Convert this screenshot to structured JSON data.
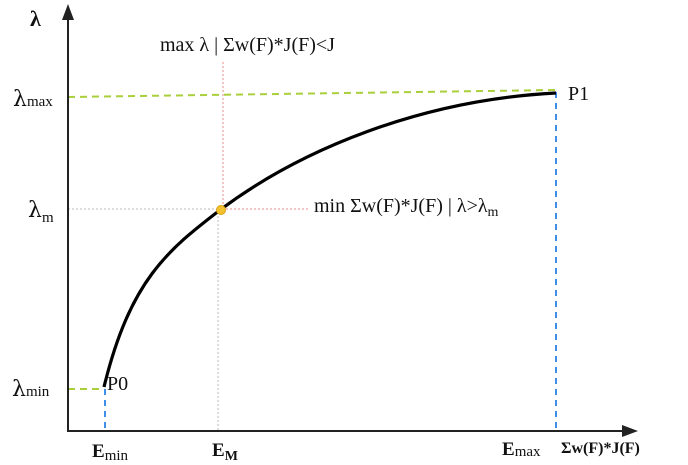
{
  "axes": {
    "y_symbol": "λ",
    "x_label": "Σw(F)*J(F)",
    "y_ticks": {
      "max": {
        "sym": "λ",
        "sub": "max"
      },
      "m": {
        "sym": "λ",
        "sub": "m"
      },
      "min": {
        "sym": "λ",
        "sub": "min"
      }
    },
    "x_ticks": {
      "min": {
        "main": "E",
        "sub": "min"
      },
      "M": {
        "main": "E",
        "sub": "M"
      },
      "max": {
        "main": "E",
        "sub": "max"
      }
    }
  },
  "points": {
    "p0": "P0",
    "p1": "P1"
  },
  "annotations": {
    "top": "max λ | Σw(F)*J(F)<J",
    "right_main": "min Σw(F)*J(F) | λ>λ",
    "right_sub": "m"
  },
  "colors": {
    "curve": "#000000",
    "axis": "#222222",
    "green_dash": "#a9cf3a",
    "blue_dash": "#3f8ee8",
    "red_dot": "#e88a8a",
    "gray_dot": "#b8b8b8",
    "marker": "#f2c12e"
  }
}
